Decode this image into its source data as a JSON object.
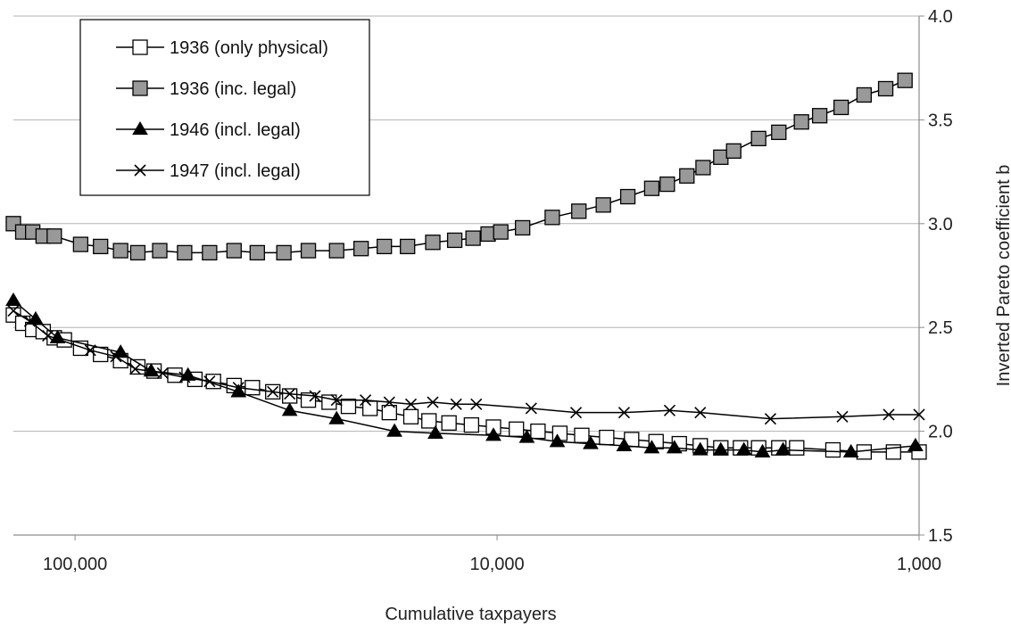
{
  "chart_data": {
    "type": "line",
    "xlabel": "Cumulative taxpayers",
    "ylabel": "Inverted Pareto coefficient b",
    "x_scale": "log",
    "x_reversed": true,
    "xlim": [
      140000,
      1000
    ],
    "ylim": [
      1.5,
      4.0
    ],
    "x_ticks": [
      100000,
      10000,
      1000
    ],
    "x_tick_labels": [
      "100,000",
      "10,000",
      "1,000"
    ],
    "y_ticks": [
      1.5,
      2.0,
      2.5,
      3.0,
      3.5,
      4.0
    ],
    "y_tick_labels": [
      "1.5",
      "2.0",
      "2.5",
      "3.0",
      "3.5",
      "4.0"
    ],
    "y_axis_side": "right",
    "grid": "horizontal",
    "legend_position": "top-left",
    "series": [
      {
        "name": "1936 (only physical)",
        "marker": "square-open",
        "color": "#000000",
        "fill": "#ffffff",
        "points": [
          [
            140000,
            2.56
          ],
          [
            133000,
            2.52
          ],
          [
            126000,
            2.49
          ],
          [
            119000,
            2.48
          ],
          [
            112000,
            2.45
          ],
          [
            106000,
            2.44
          ],
          [
            97000,
            2.4
          ],
          [
            87000,
            2.37
          ],
          [
            78000,
            2.34
          ],
          [
            71000,
            2.31
          ],
          [
            65000,
            2.29
          ],
          [
            58000,
            2.27
          ],
          [
            52000,
            2.25
          ],
          [
            47000,
            2.24
          ],
          [
            42000,
            2.22
          ],
          [
            38000,
            2.21
          ],
          [
            34000,
            2.19
          ],
          [
            31000,
            2.17
          ],
          [
            28000,
            2.15
          ],
          [
            25000,
            2.14
          ],
          [
            22500,
            2.12
          ],
          [
            20000,
            2.11
          ],
          [
            18000,
            2.09
          ],
          [
            16000,
            2.07
          ],
          [
            14500,
            2.05
          ],
          [
            13000,
            2.04
          ],
          [
            11500,
            2.03
          ],
          [
            10200,
            2.02
          ],
          [
            9000,
            2.01
          ],
          [
            8000,
            2.0
          ],
          [
            7100,
            1.99
          ],
          [
            6300,
            1.98
          ],
          [
            5500,
            1.97
          ],
          [
            4800,
            1.96
          ],
          [
            4200,
            1.95
          ],
          [
            3700,
            1.94
          ],
          [
            3300,
            1.93
          ],
          [
            2950,
            1.92
          ],
          [
            2650,
            1.92
          ],
          [
            2400,
            1.92
          ],
          [
            2150,
            1.92
          ],
          [
            1950,
            1.92
          ],
          [
            1600,
            1.91
          ],
          [
            1350,
            1.9
          ],
          [
            1150,
            1.9
          ],
          [
            1000,
            1.9
          ]
        ]
      },
      {
        "name": "1936 (inc. legal)",
        "marker": "square-filled",
        "color": "#000000",
        "fill": "#999999",
        "points": [
          [
            140000,
            3.0
          ],
          [
            133000,
            2.96
          ],
          [
            126000,
            2.96
          ],
          [
            119000,
            2.94
          ],
          [
            112000,
            2.94
          ],
          [
            97000,
            2.9
          ],
          [
            87000,
            2.89
          ],
          [
            78000,
            2.87
          ],
          [
            71000,
            2.86
          ],
          [
            63000,
            2.87
          ],
          [
            55000,
            2.86
          ],
          [
            48000,
            2.86
          ],
          [
            42000,
            2.87
          ],
          [
            37000,
            2.86
          ],
          [
            32000,
            2.86
          ],
          [
            28000,
            2.87
          ],
          [
            24000,
            2.87
          ],
          [
            21000,
            2.88
          ],
          [
            18500,
            2.89
          ],
          [
            16300,
            2.89
          ],
          [
            14200,
            2.91
          ],
          [
            12600,
            2.92
          ],
          [
            11400,
            2.93
          ],
          [
            10500,
            2.95
          ],
          [
            9800,
            2.96
          ],
          [
            8700,
            2.98
          ],
          [
            7400,
            3.03
          ],
          [
            6400,
            3.06
          ],
          [
            5600,
            3.09
          ],
          [
            4900,
            3.13
          ],
          [
            4300,
            3.17
          ],
          [
            3950,
            3.19
          ],
          [
            3550,
            3.23
          ],
          [
            3250,
            3.27
          ],
          [
            2950,
            3.32
          ],
          [
            2750,
            3.35
          ],
          [
            2400,
            3.41
          ],
          [
            2150,
            3.44
          ],
          [
            1900,
            3.49
          ],
          [
            1720,
            3.52
          ],
          [
            1530,
            3.56
          ],
          [
            1350,
            3.62
          ],
          [
            1200,
            3.65
          ],
          [
            1080,
            3.69
          ]
        ]
      },
      {
        "name": "1946 (incl. legal)",
        "marker": "triangle-filled",
        "color": "#000000",
        "fill": "#000000",
        "points": [
          [
            140000,
            2.63
          ],
          [
            124000,
            2.54
          ],
          [
            110000,
            2.45
          ],
          [
            78000,
            2.38
          ],
          [
            66000,
            2.29
          ],
          [
            54000,
            2.27
          ],
          [
            41000,
            2.19
          ],
          [
            31000,
            2.1
          ],
          [
            24000,
            2.06
          ],
          [
            17500,
            2.0
          ],
          [
            14000,
            1.99
          ],
          [
            10200,
            1.98
          ],
          [
            8500,
            1.97
          ],
          [
            7200,
            1.95
          ],
          [
            6000,
            1.94
          ],
          [
            5000,
            1.93
          ],
          [
            4300,
            1.92
          ],
          [
            3800,
            1.92
          ],
          [
            3300,
            1.91
          ],
          [
            2950,
            1.91
          ],
          [
            2600,
            1.91
          ],
          [
            2350,
            1.9
          ],
          [
            2100,
            1.91
          ],
          [
            1450,
            1.9
          ],
          [
            1020,
            1.93
          ]
        ]
      },
      {
        "name": "1947 (incl. legal)",
        "marker": "x",
        "color": "#000000",
        "fill": "none",
        "points": [
          [
            140000,
            2.58
          ],
          [
            128000,
            2.53
          ],
          [
            116000,
            2.46
          ],
          [
            92000,
            2.39
          ],
          [
            80000,
            2.36
          ],
          [
            72000,
            2.3
          ],
          [
            62000,
            2.28
          ],
          [
            55000,
            2.26
          ],
          [
            48000,
            2.24
          ],
          [
            41000,
            2.21
          ],
          [
            34000,
            2.19
          ],
          [
            31000,
            2.18
          ],
          [
            27000,
            2.17
          ],
          [
            24000,
            2.15
          ],
          [
            20500,
            2.15
          ],
          [
            18000,
            2.14
          ],
          [
            16000,
            2.13
          ],
          [
            14200,
            2.14
          ],
          [
            12500,
            2.13
          ],
          [
            11200,
            2.13
          ],
          [
            8300,
            2.11
          ],
          [
            6500,
            2.09
          ],
          [
            5000,
            2.09
          ],
          [
            3900,
            2.1
          ],
          [
            3300,
            2.09
          ],
          [
            2250,
            2.06
          ],
          [
            1520,
            2.07
          ],
          [
            1180,
            2.08
          ],
          [
            1000,
            2.08
          ]
        ]
      }
    ]
  }
}
